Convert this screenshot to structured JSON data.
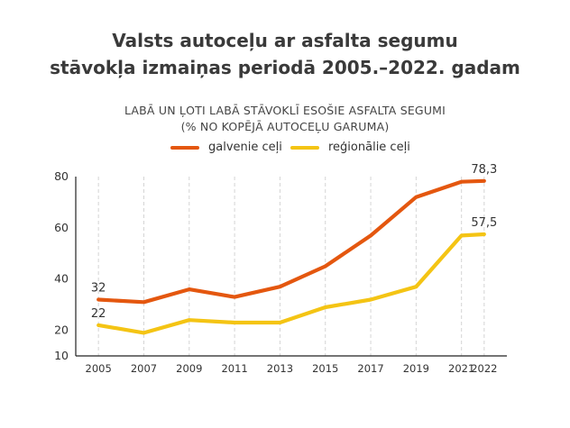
{
  "title_line1": "Valsts autoceļu ar asfalta segumu",
  "title_line2": "stāvokļa izmaiņas periodā 2005.–2022. gadam",
  "subtitle_line1": "LABĀ UN ĻOTI LABĀ STĀVOKLĪ ESOŠIE ASFALTA SEGUMI",
  "subtitle_line2": "(% NO KOPĒJĀ AUTOCEĻU GARUMA)",
  "chart_data": {
    "type": "line",
    "x": [
      2005,
      2007,
      2009,
      2011,
      2013,
      2015,
      2017,
      2019,
      2021,
      2022
    ],
    "series": [
      {
        "name": "galvenie ceļi",
        "color": "#e4570f",
        "values": [
          32,
          31,
          36,
          33,
          37,
          45,
          57,
          72,
          78,
          78.3
        ]
      },
      {
        "name": "reģionālie ceļi",
        "color": "#f4c414",
        "values": [
          22,
          19,
          24,
          23,
          23,
          29,
          32,
          37,
          57,
          57.5
        ]
      }
    ],
    "y_ticks": [
      "80",
      "60",
      "40",
      "20",
      "10"
    ],
    "x_ticks": [
      "2005",
      "2007",
      "2009",
      "2011",
      "2013",
      "2015",
      "2017",
      "2019",
      "2021",
      "2022"
    ],
    "ylim": [
      10,
      80
    ],
    "grid": "vertical dashed",
    "legend": "top-center",
    "annotations": [
      {
        "series": 0,
        "index": 0,
        "text": "32"
      },
      {
        "series": 0,
        "index": 9,
        "text": "78,3"
      },
      {
        "series": 1,
        "index": 0,
        "text": "22"
      },
      {
        "series": 1,
        "index": 9,
        "text": "57,5"
      }
    ]
  }
}
